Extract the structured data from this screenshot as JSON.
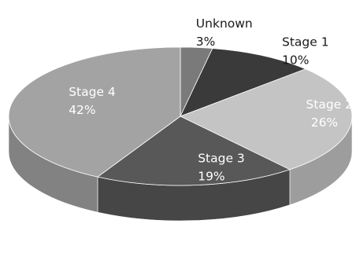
{
  "chart_data": {
    "type": "pie",
    "style": "3d",
    "categories": [
      "Unknown",
      "Stage 1",
      "Stage 2",
      "Stage 3",
      "Stage 4"
    ],
    "values": [
      3,
      10,
      26,
      19,
      42
    ],
    "labels": [
      "3%",
      "10%",
      "26%",
      "19%",
      "42%"
    ],
    "colors": [
      "#7a7a7a",
      "#3a3a3a",
      "#c4c4c4",
      "#585858",
      "#a3a3a3"
    ],
    "label_colors": [
      "#1a1a1a",
      "#1a1a1a",
      "#ffffff",
      "#ffffff",
      "#ffffff"
    ],
    "title": "",
    "legend": "none"
  }
}
